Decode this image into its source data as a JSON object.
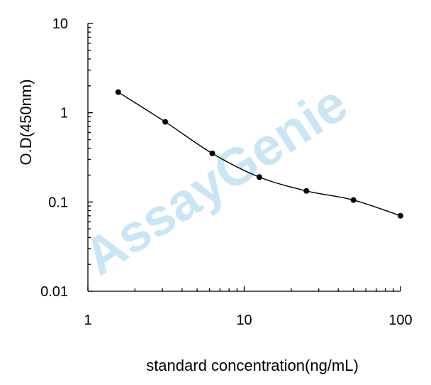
{
  "chart_data": {
    "type": "line",
    "x_scale": "log",
    "y_scale": "log",
    "xlim": [
      1,
      100
    ],
    "ylim": [
      0.01,
      10
    ],
    "xticks": [
      1,
      10,
      100
    ],
    "xtick_labels": [
      "1",
      "10",
      "100"
    ],
    "yticks": [
      0.01,
      0.1,
      1,
      10
    ],
    "ytick_labels": [
      "0.01",
      "0.1",
      "1",
      "10"
    ],
    "xlabel": "standard concentration(ng/mL)",
    "ylabel": "O.D(450nm)",
    "grid": false,
    "watermark": "AssayGenie",
    "series": [
      {
        "x": [
          1.5625,
          3.125,
          6.25,
          12.5,
          25,
          50,
          100
        ],
        "y": [
          1.7,
          0.79,
          0.35,
          0.19,
          0.133,
          0.105,
          0.07
        ]
      }
    ],
    "colors": {
      "line": "#000000",
      "marker": "#000000",
      "watermark": "#9fd0ea"
    }
  }
}
